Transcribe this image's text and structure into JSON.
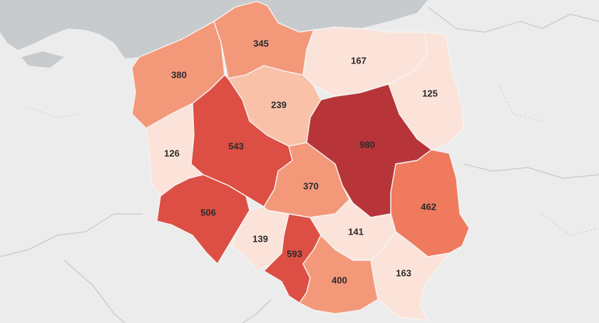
{
  "map": {
    "legend_bins": [
      {
        "max": 170,
        "color": "#fbe3d9"
      },
      {
        "max": 300,
        "color": "#f8c1a8"
      },
      {
        "max": 420,
        "color": "#f4987a"
      },
      {
        "max": 500,
        "color": "#ef7a5e"
      },
      {
        "max": 700,
        "color": "#dd4f44"
      },
      {
        "max": 2000,
        "color": "#b73538"
      }
    ],
    "regions": [
      {
        "id": "zachodniopomorskie",
        "value": "380"
      },
      {
        "id": "pomorskie",
        "value": "345"
      },
      {
        "id": "warminsko-mazurskie",
        "value": "167"
      },
      {
        "id": "podlaskie",
        "value": "125"
      },
      {
        "id": "kujawsko-pomorskie",
        "value": "239"
      },
      {
        "id": "lubuskie",
        "value": "126"
      },
      {
        "id": "wielkopolskie",
        "value": "543"
      },
      {
        "id": "mazowieckie",
        "value": "980"
      },
      {
        "id": "lodzkie",
        "value": "370"
      },
      {
        "id": "lubelskie",
        "value": "462"
      },
      {
        "id": "dolnoslaskie",
        "value": "506"
      },
      {
        "id": "opolskie",
        "value": "139"
      },
      {
        "id": "slaskie",
        "value": "593"
      },
      {
        "id": "swietokrzyskie",
        "value": "141"
      },
      {
        "id": "malopolskie",
        "value": "400"
      },
      {
        "id": "podkarpackie",
        "value": "163"
      }
    ]
  }
}
